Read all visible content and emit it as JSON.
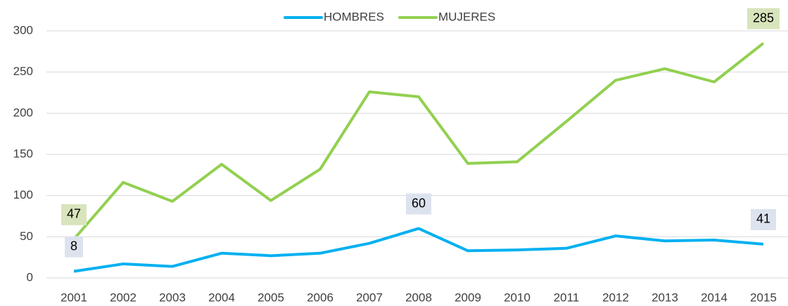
{
  "chart_data": {
    "type": "line",
    "categories": [
      "2001",
      "2002",
      "2003",
      "2004",
      "2005",
      "2006",
      "2007",
      "2008",
      "2009",
      "2010",
      "2011",
      "2012",
      "2013",
      "2014",
      "2015"
    ],
    "series": [
      {
        "name": "HOMBRES",
        "color": "#00b0f0",
        "label_color": "#dce3ef",
        "values": [
          8,
          17,
          14,
          30,
          27,
          30,
          42,
          60,
          33,
          34,
          36,
          51,
          45,
          46,
          41
        ],
        "labels": [
          0,
          7,
          14
        ]
      },
      {
        "name": "MUJERES",
        "color": "#92d050",
        "label_color": "#d8e4bc",
        "values": [
          47,
          116,
          93,
          138,
          94,
          132,
          226,
          220,
          139,
          141,
          190,
          240,
          254,
          238,
          285
        ],
        "labels": [
          0,
          14
        ]
      }
    ],
    "ylim": [
      0,
      300
    ],
    "yticks": [
      0,
      50,
      100,
      150,
      200,
      250,
      300
    ],
    "grid": true,
    "legend": "top"
  }
}
